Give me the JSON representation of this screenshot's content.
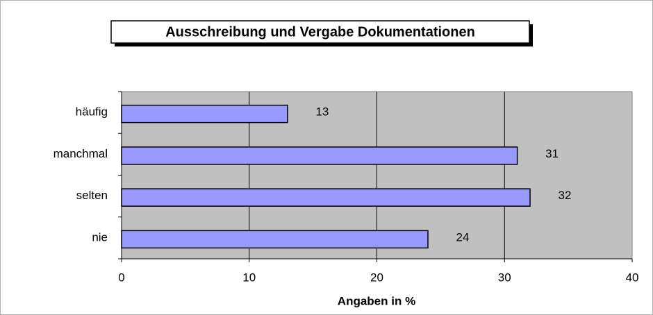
{
  "chart_data": {
    "type": "bar",
    "orientation": "horizontal",
    "title": "Ausschreibung und Vergabe Dokumentationen",
    "categories": [
      "häufig",
      "manchmal",
      "selten",
      "nie"
    ],
    "values": [
      13,
      31,
      32,
      24
    ],
    "color": "#9999ff",
    "xlabel": "Angaben in %",
    "xlim": [
      0,
      40
    ],
    "xticks": [
      0,
      10,
      20,
      30,
      40
    ],
    "grid": true
  }
}
